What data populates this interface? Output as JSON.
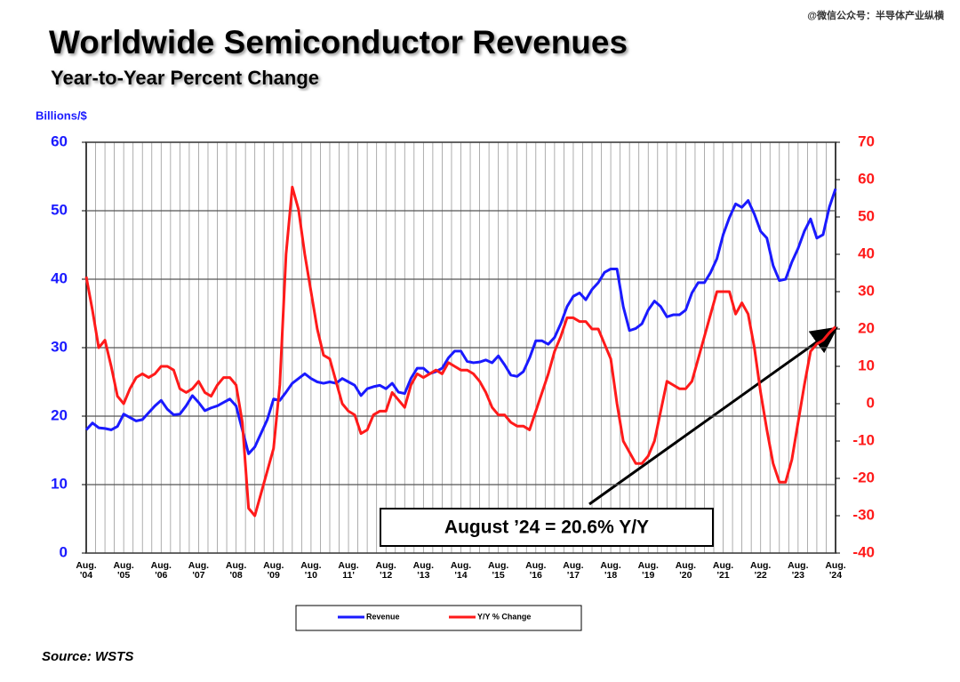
{
  "chart_data": {
    "type": "line",
    "title": "Worldwide Semiconductor Revenues",
    "subtitle": "Year-to-Year Percent Change",
    "y_label": "Billions/$",
    "source": "Source: WSTS",
    "watermark": "@微信公众号：半导体产业纵横",
    "annotation": "August ’24 = 20.6% Y/Y",
    "categories": [
      "Aug. '04",
      null,
      null,
      null,
      null,
      null,
      "Aug. '05",
      null,
      null,
      null,
      null,
      null,
      "Aug. '06",
      null,
      null,
      null,
      null,
      null,
      "Aug. '07",
      null,
      null,
      null,
      null,
      null,
      "Aug. '08",
      null,
      null,
      null,
      null,
      null,
      "Aug. '09",
      null,
      null,
      null,
      null,
      null,
      "Aug. '10",
      null,
      null,
      null,
      null,
      null,
      "Aug. 11'",
      null,
      null,
      null,
      null,
      null,
      "Aug. '12",
      null,
      null,
      null,
      null,
      null,
      "Aug. '13",
      null,
      null,
      null,
      null,
      null,
      "Aug. '14",
      null,
      null,
      null,
      null,
      null,
      "Aug. '15",
      null,
      null,
      null,
      null,
      null,
      "Aug. '16",
      null,
      null,
      null,
      null,
      null,
      "Aug. '17",
      null,
      null,
      null,
      null,
      null,
      "Aug. '18",
      null,
      null,
      null,
      null,
      null,
      "Aug. '19",
      null,
      null,
      null,
      null,
      null,
      "Aug. '20",
      null,
      null,
      null,
      null,
      null,
      "Aug. '21",
      null,
      null,
      null,
      null,
      null,
      "Aug. '22",
      null,
      null,
      null,
      null,
      null,
      "Aug. '23",
      null,
      null,
      null,
      null,
      null,
      "Aug. '24"
    ],
    "series": [
      {
        "name": "Revenue",
        "color": "#1a1aff",
        "axis": "y",
        "values": [
          18,
          19,
          18.3,
          18.2,
          18,
          18.5,
          20.3,
          19.8,
          19.3,
          19.5,
          20.5,
          21.5,
          22.3,
          21,
          20.2,
          20.3,
          21.5,
          23,
          22,
          20.8,
          21.2,
          21.5,
          22,
          22.5,
          21.5,
          18,
          14.5,
          15.5,
          17.5,
          19.5,
          22.5,
          22.3,
          23.5,
          24.8,
          25.5,
          26.2,
          25.5,
          25,
          24.8,
          25,
          24.8,
          25.5,
          25,
          24.5,
          23,
          24,
          24.3,
          24.5,
          24,
          24.8,
          23.5,
          23.3,
          25.5,
          27,
          27,
          26.2,
          26.5,
          27,
          28.5,
          29.5,
          29.5,
          28,
          27.8,
          27.9,
          28.2,
          27.8,
          28.8,
          27.5,
          26,
          25.8,
          26.5,
          28.5,
          31,
          31,
          30.5,
          31.5,
          33.5,
          36,
          37.5,
          38,
          37,
          38.5,
          39.5,
          41,
          41.5,
          41.5,
          36,
          32.5,
          32.8,
          33.5,
          35.5,
          36.8,
          36,
          34.5,
          34.8,
          34.8,
          35.5,
          38,
          39.5,
          39.5,
          41,
          43,
          46.5,
          49,
          51,
          50.5,
          51.5,
          49.5,
          47,
          46,
          42,
          39.8,
          40,
          42.5,
          44.5,
          47,
          48.8,
          46,
          46.5,
          50.5,
          53.2
        ]
      },
      {
        "name": "Y/Y % Change",
        "color": "#ff1a1a",
        "axis": "y2",
        "values": [
          34,
          25,
          15,
          17,
          10,
          2,
          0,
          4,
          7,
          8,
          7,
          8,
          10,
          10,
          9,
          4,
          3,
          4,
          6,
          3,
          2,
          5,
          7,
          7,
          5,
          -5,
          -28,
          -30,
          -24,
          -18,
          -12,
          5,
          40,
          58,
          52,
          40,
          30,
          20,
          13,
          12,
          6,
          0,
          -2,
          -3,
          -8,
          -7,
          -3,
          -2,
          -2,
          3,
          1,
          -1,
          5,
          8,
          7,
          8,
          9,
          8,
          11,
          10,
          9,
          9,
          8,
          6,
          3,
          -1,
          -3,
          -3,
          -5,
          -6,
          -6,
          -7,
          -2,
          3,
          8,
          14,
          18,
          23,
          23,
          22,
          22,
          20,
          20,
          16,
          12,
          0,
          -10,
          -13,
          -16,
          -16,
          -14,
          -10,
          -2,
          6,
          5,
          4,
          4,
          6,
          12,
          18,
          24,
          30,
          30,
          30,
          24,
          27,
          24,
          15,
          3,
          -7,
          -16,
          -21,
          -21,
          -15,
          -5,
          5,
          14,
          16,
          17,
          19,
          20.6
        ]
      }
    ],
    "ylim": [
      0,
      60
    ],
    "yticks": [
      0,
      10,
      20,
      30,
      40,
      50,
      60
    ],
    "y2lim": [
      -40,
      70
    ],
    "y2ticks": [
      -40,
      -30,
      -20,
      -10,
      0,
      10,
      20,
      30,
      40,
      50,
      60,
      70
    ],
    "grid": true
  }
}
